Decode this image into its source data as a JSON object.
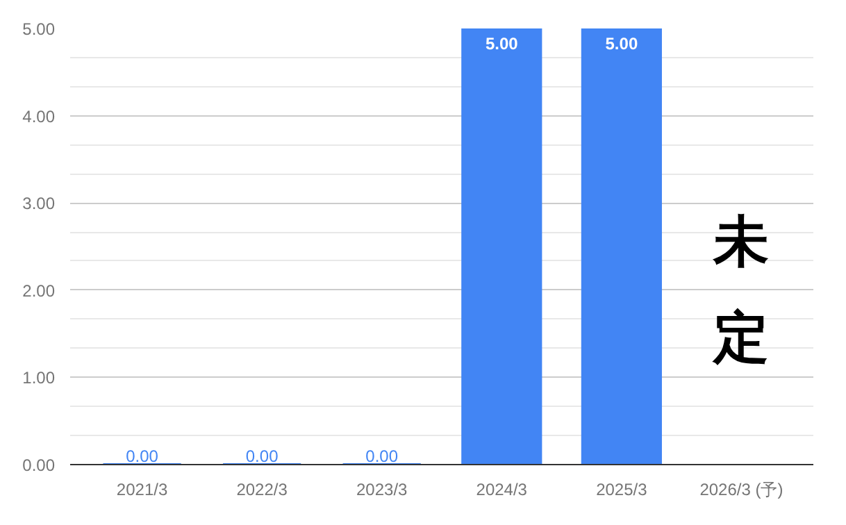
{
  "chart_data": {
    "type": "bar",
    "categories": [
      "2021/3",
      "2022/3",
      "2023/3",
      "2024/3",
      "2025/3",
      "2026/3 (予)"
    ],
    "values": [
      0,
      0,
      0,
      5,
      5,
      null
    ],
    "value_labels": [
      "0.00",
      "0.00",
      "0.00",
      "5.00",
      "5.00",
      null
    ],
    "color": "#4285f4",
    "ylim": [
      0,
      5
    ],
    "yticks": [
      {
        "value": 0,
        "label": "0.00"
      },
      {
        "value": 1,
        "label": "1.00"
      },
      {
        "value": 2,
        "label": "2.00"
      },
      {
        "value": 3,
        "label": "3.00"
      },
      {
        "value": 4,
        "label": "4.00"
      },
      {
        "value": 5,
        "label": "5.00"
      }
    ],
    "grid": "y",
    "annotations": [
      "未定"
    ]
  }
}
